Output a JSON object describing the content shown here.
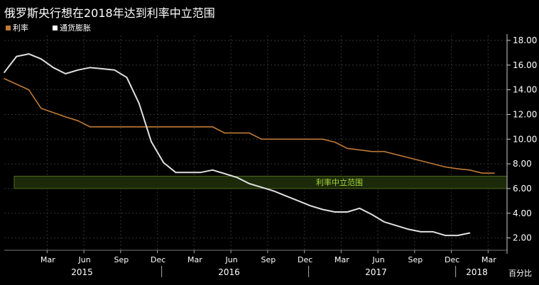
{
  "chart_data": {
    "type": "line",
    "title": "俄罗斯央行想在2018年达到利率中立范围",
    "ylabel": "百分比",
    "ylim": [
      1,
      18.4
    ],
    "y_ticks": [
      "18.00",
      "16.00",
      "14.00",
      "12.00",
      "10.00",
      "8.00",
      "6.00",
      "4.00",
      "2.00"
    ],
    "x_month_labels": [
      "Mar",
      "Jun",
      "Sep",
      "Dec",
      "Mar",
      "Jun",
      "Sep",
      "Dec",
      "Mar",
      "Jun",
      "Sep",
      "Dec",
      "Mar"
    ],
    "x_year_labels": [
      "2015",
      "2016",
      "2017",
      "2018"
    ],
    "legend_position": "top-left",
    "band": {
      "label": "利率中立范围",
      "y_low": 6.0,
      "y_high": 7.0
    },
    "series": [
      {
        "name": "利率",
        "color": "#c07a35",
        "points": [
          [
            "2014-12",
            14.9
          ],
          [
            "2015-02",
            14.0
          ],
          [
            "2015-03",
            12.5
          ],
          [
            "2015-05",
            11.8
          ],
          [
            "2015-06",
            11.5
          ],
          [
            "2015-07",
            11.0
          ],
          [
            "2015-12",
            11.0
          ],
          [
            "2016-05",
            11.0
          ],
          [
            "2016-06",
            10.5
          ],
          [
            "2016-08",
            10.5
          ],
          [
            "2016-09",
            10.0
          ],
          [
            "2017-02",
            10.0
          ],
          [
            "2017-03",
            9.75
          ],
          [
            "2017-04",
            9.25
          ],
          [
            "2017-06",
            9.0
          ],
          [
            "2017-07",
            9.0
          ],
          [
            "2017-09",
            8.5
          ],
          [
            "2017-11",
            8.0
          ],
          [
            "2017-12",
            7.75
          ],
          [
            "2018-01",
            7.6
          ],
          [
            "2018-02",
            7.5
          ],
          [
            "2018-03",
            7.25
          ],
          [
            "2018-04",
            7.25
          ]
        ]
      },
      {
        "name": "通货膨胀",
        "color": "#e0e0e0",
        "points": [
          [
            "2014-12",
            15.4
          ],
          [
            "2015-01",
            16.7
          ],
          [
            "2015-02",
            16.9
          ],
          [
            "2015-03",
            16.5
          ],
          [
            "2015-04",
            15.8
          ],
          [
            "2015-05",
            15.3
          ],
          [
            "2015-06",
            15.6
          ],
          [
            "2015-07",
            15.8
          ],
          [
            "2015-08",
            15.7
          ],
          [
            "2015-09",
            15.6
          ],
          [
            "2015-10",
            15.0
          ],
          [
            "2015-11",
            12.9
          ],
          [
            "2015-12",
            9.8
          ],
          [
            "2016-01",
            8.1
          ],
          [
            "2016-02",
            7.3
          ],
          [
            "2016-03",
            7.3
          ],
          [
            "2016-04",
            7.3
          ],
          [
            "2016-05",
            7.5
          ],
          [
            "2016-06",
            7.2
          ],
          [
            "2016-07",
            6.9
          ],
          [
            "2016-08",
            6.4
          ],
          [
            "2016-09",
            6.1
          ],
          [
            "2016-10",
            5.8
          ],
          [
            "2016-11",
            5.4
          ],
          [
            "2016-12",
            5.0
          ],
          [
            "2017-01",
            4.6
          ],
          [
            "2017-02",
            4.3
          ],
          [
            "2017-03",
            4.1
          ],
          [
            "2017-04",
            4.1
          ],
          [
            "2017-05",
            4.4
          ],
          [
            "2017-06",
            3.9
          ],
          [
            "2017-07",
            3.3
          ],
          [
            "2017-08",
            3.0
          ],
          [
            "2017-09",
            2.7
          ],
          [
            "2017-10",
            2.5
          ],
          [
            "2017-11",
            2.5
          ],
          [
            "2017-12",
            2.2
          ],
          [
            "2018-01",
            2.2
          ],
          [
            "2018-02",
            2.4
          ]
        ]
      }
    ]
  }
}
